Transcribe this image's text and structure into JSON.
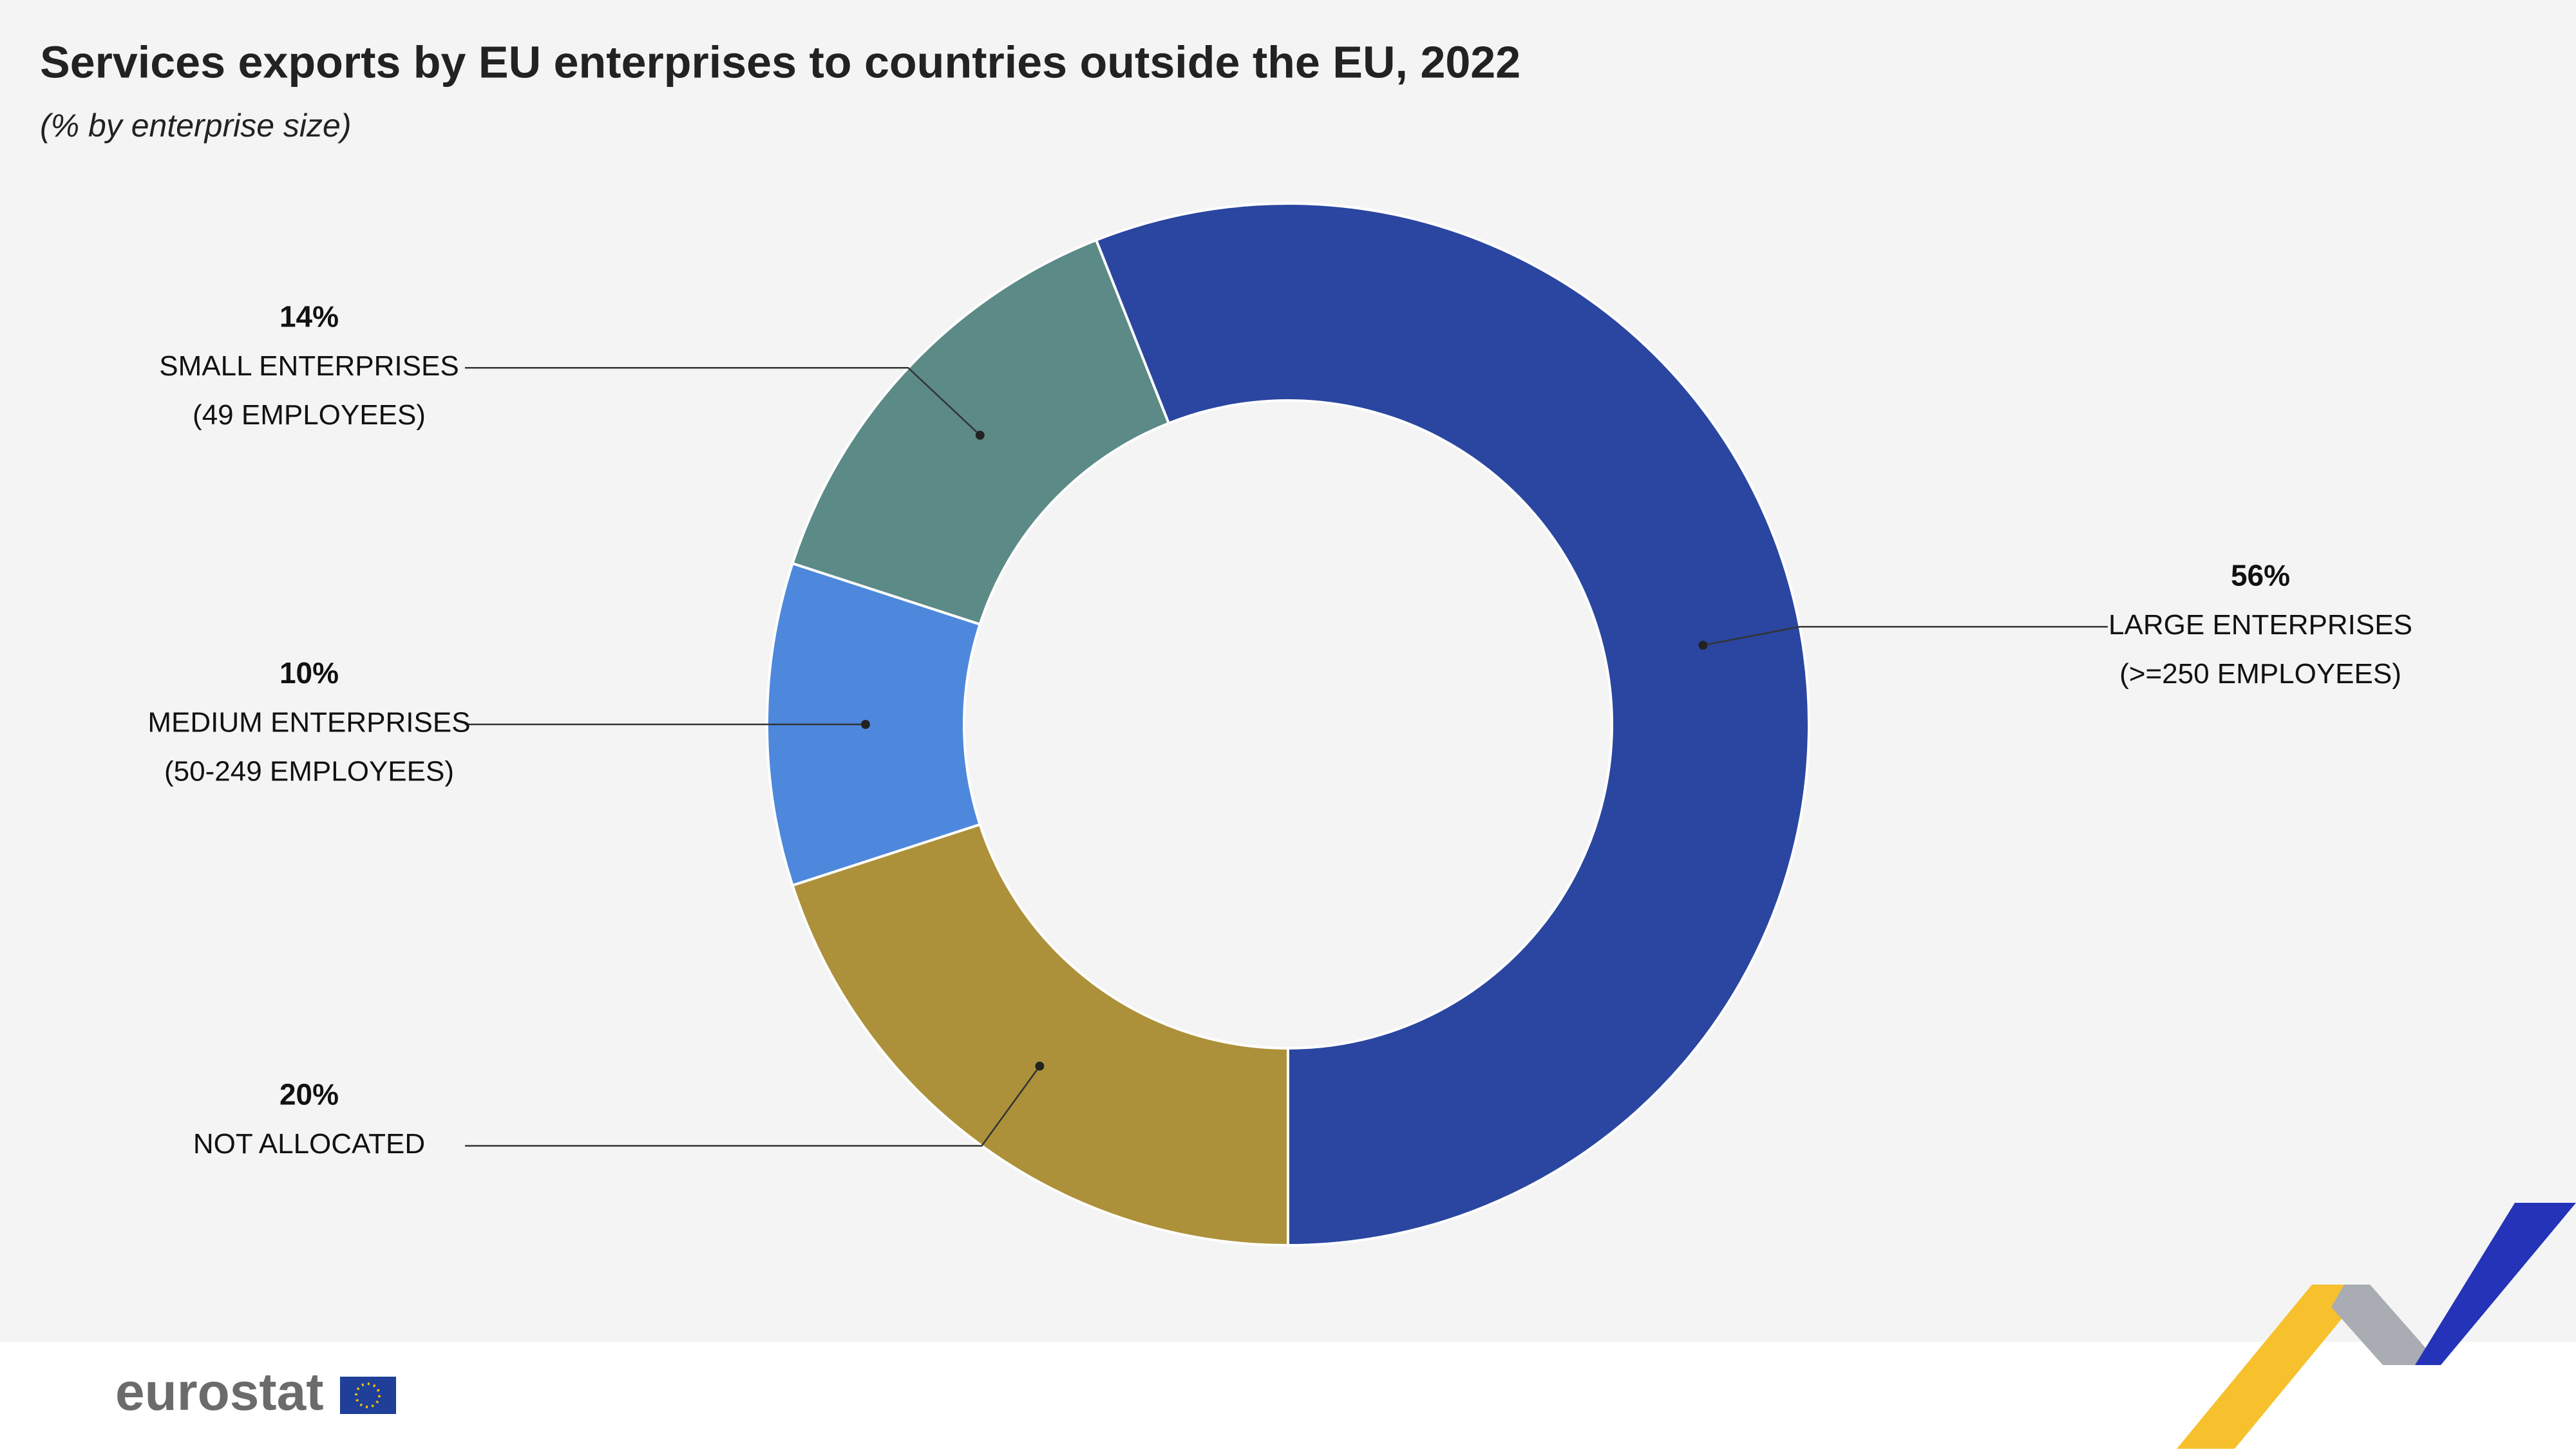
{
  "chart_data": {
    "type": "donut",
    "title": "Services exports by EU enterprises to countries outside the EU, 2022",
    "subtitle": "(% by enterprise size)",
    "categories": [
      [
        "NOT ALLOCATED"
      ],
      [
        "MEDIUM ENTERPRISES",
        "(50-249 EMPLOYEES)"
      ],
      [
        "SMALL ENTERPRISES",
        "(49 EMPLOYEES)"
      ],
      [
        "LARGE ENTERPRISES",
        "(>=250 EMPLOYEES)"
      ]
    ],
    "values": [
      20,
      10,
      14,
      56
    ],
    "value_labels": [
      "20%",
      "10%",
      "14%",
      "56%"
    ],
    "colors": [
      "#ac913a",
      "#4d88dc",
      "#5b8a87",
      "#2a46a0"
    ]
  },
  "footer": {
    "brand": "eurostat"
  }
}
